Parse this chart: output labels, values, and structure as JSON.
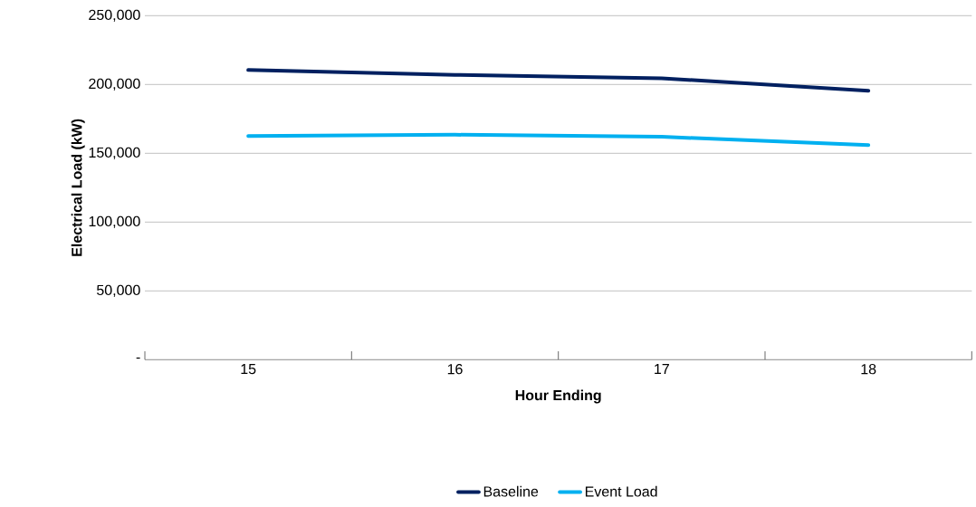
{
  "chart_data": {
    "type": "line",
    "xlabel": "Hour Ending",
    "ylabel": "Electrical Load (kW)",
    "categories": [
      "15",
      "16",
      "17",
      "18"
    ],
    "series": [
      {
        "name": "Baseline",
        "color": "#002060",
        "values": [
          210500,
          207000,
          204500,
          195500
        ]
      },
      {
        "name": "Event Load",
        "color": "#00b0f0",
        "values": [
          162500,
          163500,
          162000,
          156000
        ]
      }
    ],
    "ylim": [
      0,
      250000
    ],
    "yticks": [
      {
        "value": 0,
        "label": "-"
      },
      {
        "value": 50000,
        "label": "50,000"
      },
      {
        "value": 100000,
        "label": "100,000"
      },
      {
        "value": 150000,
        "label": "150,000"
      },
      {
        "value": 200000,
        "label": "200,000"
      },
      {
        "value": 250000,
        "label": "250,000"
      }
    ],
    "grid": "y",
    "legend": "bottom",
    "marker": "none",
    "line_style": "solid"
  }
}
